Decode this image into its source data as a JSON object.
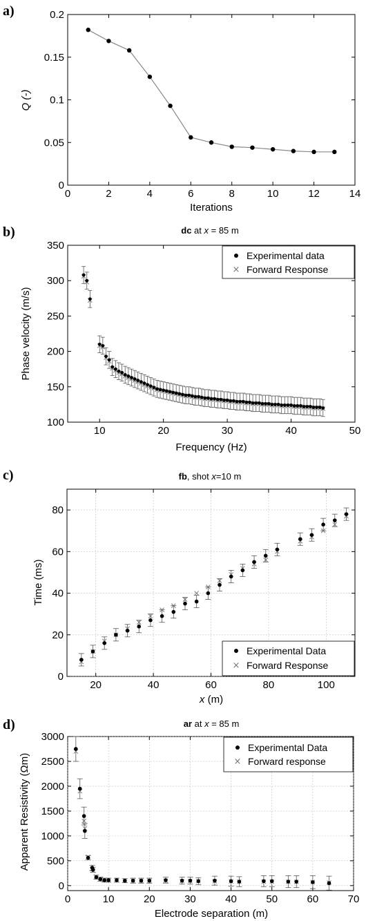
{
  "chart_data": [
    {
      "type": "line",
      "panel": "a)",
      "title": "",
      "xlabel": "Iterations",
      "ylabel": "Q (-)",
      "xlim": [
        0,
        14
      ],
      "ylim": [
        0,
        0.2
      ],
      "xticks": [
        "0",
        "2",
        "4",
        "6",
        "8",
        "10",
        "12",
        "14"
      ],
      "yticks": [
        "0",
        "0.05",
        "0.1",
        "0.15",
        "0.2"
      ],
      "grid": false,
      "series": [
        {
          "x": [
            1,
            2,
            3,
            4,
            5,
            6,
            7,
            8,
            9,
            10,
            11,
            12,
            13
          ],
          "y": [
            0.182,
            0.169,
            0.158,
            0.127,
            0.093,
            0.056,
            0.05,
            0.045,
            0.044,
            0.042,
            0.04,
            0.039,
            0.039
          ]
        }
      ]
    },
    {
      "type": "scatter",
      "panel": "b)",
      "title_bold": "dc",
      "title_mid": " at ",
      "title_ital": "x",
      "title_rest": " = 85 m",
      "xlabel": "Frequency (Hz)",
      "ylabel": "Phase velocity (m/s)",
      "xlim": [
        5,
        50
      ],
      "ylim": [
        100,
        350
      ],
      "xticks": [
        "10",
        "20",
        "30",
        "40",
        "50"
      ],
      "yticks": [
        "100",
        "150",
        "200",
        "250",
        "300",
        "350"
      ],
      "grid": false,
      "legend": [
        "Experimental data",
        "Forward Response"
      ],
      "legend_position": "top-right",
      "series": [
        {
          "name": "Experimental data",
          "x": [
            7.5,
            8,
            8.5,
            10,
            10.5,
            11,
            11.5,
            12,
            12.5,
            13,
            13.5,
            14,
            14.5,
            15,
            15.5,
            16,
            16.5,
            17,
            17.5,
            18,
            18.5,
            19,
            19.5,
            20,
            20.5,
            21,
            21.5,
            22,
            22.5,
            23,
            23.5,
            24,
            24.5,
            25,
            25.5,
            26,
            26.5,
            27,
            27.5,
            28,
            28.5,
            29,
            29.5,
            30,
            30.5,
            31,
            31.5,
            32,
            32.5,
            33,
            33.5,
            34,
            34.5,
            35,
            35.5,
            36,
            36.5,
            37,
            37.5,
            38,
            38.5,
            39,
            39.5,
            40,
            40.5,
            41,
            41.5,
            42,
            42.5,
            43,
            43.5,
            44,
            44.5,
            45
          ],
          "y": [
            308,
            300,
            274,
            210,
            208,
            193,
            188,
            178,
            175,
            172,
            170,
            167,
            165,
            163,
            161,
            159,
            157,
            155,
            153,
            151,
            149,
            147,
            146,
            145,
            144,
            143,
            142,
            141,
            140,
            139,
            138,
            138,
            137,
            136,
            136,
            135,
            134,
            134,
            133,
            133,
            132,
            132,
            131,
            131,
            130,
            130,
            129,
            129,
            129,
            128,
            128,
            127,
            127,
            127,
            126,
            126,
            126,
            125,
            125,
            125,
            124,
            124,
            124,
            124,
            123,
            123,
            123,
            122,
            122,
            122,
            121,
            121,
            121,
            120
          ],
          "error": 12
        },
        {
          "name": "Forward Response",
          "x": [
            7.5,
            8,
            8.5,
            10,
            10.5,
            11,
            11.5,
            12,
            12.5,
            13,
            13.5,
            14,
            14.5,
            15,
            15.5,
            16,
            16.5,
            17,
            17.5,
            18,
            18.5,
            19,
            19.5,
            20,
            20.5,
            21,
            21.5,
            22,
            22.5,
            23,
            23.5,
            24,
            24.5,
            25,
            25.5,
            26,
            26.5,
            27,
            27.5,
            28,
            28.5,
            29,
            29.5,
            30,
            30.5,
            31,
            31.5,
            32,
            32.5,
            33,
            33.5,
            34,
            34.5,
            35,
            35.5,
            36,
            36.5,
            37,
            37.5,
            38,
            38.5,
            39,
            39.5,
            40,
            40.5,
            41,
            41.5,
            42,
            42.5,
            43,
            43.5,
            44,
            44.5,
            45
          ],
          "y": [
            306,
            298,
            272,
            208,
            206,
            191,
            186,
            176,
            173,
            170,
            168,
            165,
            163,
            161,
            159,
            157,
            155,
            153,
            151,
            149,
            148,
            146,
            145,
            144,
            143,
            142,
            141,
            140,
            139,
            138,
            137,
            137,
            136,
            135,
            135,
            134,
            133,
            133,
            132,
            132,
            131,
            131,
            130,
            130,
            129,
            129,
            128,
            128,
            128,
            127,
            127,
            126,
            126,
            126,
            125,
            125,
            125,
            124,
            124,
            124,
            123,
            123,
            123,
            123,
            122,
            122,
            122,
            121,
            121,
            121,
            120,
            120,
            120,
            119
          ]
        }
      ]
    },
    {
      "type": "scatter",
      "panel": "c)",
      "title_bold": "fb",
      "title_mid": ", shot ",
      "title_ital": "x",
      "title_rest": "=10 m",
      "xlabel_ital": "x",
      "xlabel_rest": " (m)",
      "ylabel": "Time (ms)",
      "xlim": [
        10,
        110
      ],
      "ylim": [
        0,
        90
      ],
      "xticks": [
        "20",
        "40",
        "60",
        "80",
        "100"
      ],
      "yticks": [
        "0",
        "20",
        "40",
        "60",
        "80"
      ],
      "grid": true,
      "legend": [
        "Experimental Data",
        "Forward Response"
      ],
      "legend_position": "bottom-right",
      "series": [
        {
          "name": "Experimental Data",
          "x": [
            15,
            19,
            23,
            27,
            31,
            35,
            39,
            43,
            47,
            51,
            55,
            59,
            63,
            67,
            71,
            75,
            79,
            83,
            91,
            95,
            99,
            103,
            107
          ],
          "y": [
            8,
            12,
            16,
            20,
            22,
            24,
            27,
            29,
            31,
            35,
            36,
            40,
            44,
            48,
            51,
            55,
            58,
            61,
            66,
            68,
            73,
            75,
            78
          ],
          "error": 3
        },
        {
          "name": "Forward Response",
          "x": [
            15,
            19,
            23,
            27,
            31,
            35,
            39,
            43,
            47,
            51,
            55,
            59,
            63,
            67,
            71,
            75,
            79,
            83,
            91,
            95,
            99,
            103,
            107
          ],
          "y": [
            7,
            12,
            17,
            20,
            23,
            26,
            29,
            32,
            34,
            37,
            40,
            43,
            46,
            49,
            52,
            54,
            56,
            60,
            65,
            67,
            70,
            73,
            77
          ]
        }
      ]
    },
    {
      "type": "scatter",
      "panel": "d)",
      "title_bold": "ar",
      "title_mid": " at ",
      "title_ital": "x",
      "title_rest": " = 85 m",
      "xlabel": "Electrode separation (m)",
      "ylabel": "Apparent Resistivity (Ωm)",
      "xlim": [
        0,
        70
      ],
      "ylim": [
        -100,
        3000
      ],
      "xticks": [
        "0",
        "10",
        "20",
        "30",
        "40",
        "50",
        "60",
        "70"
      ],
      "yticks": [
        "0",
        "500",
        "1000",
        "1500",
        "2000",
        "2500",
        "3000"
      ],
      "grid": true,
      "legend": [
        "Experimental Data",
        "Forward response"
      ],
      "legend_position": "top-right",
      "series": [
        {
          "name": "Experimental Data",
          "x": [
            2,
            3,
            4,
            4.2,
            5,
            6,
            6.2,
            7,
            8,
            9,
            10,
            12,
            14,
            16,
            18,
            20,
            24,
            28,
            30,
            32,
            36,
            40,
            42,
            48,
            50,
            54,
            56,
            60,
            64
          ],
          "y": [
            2750,
            1950,
            1400,
            1100,
            560,
            360,
            320,
            170,
            130,
            110,
            110,
            110,
            100,
            100,
            100,
            100,
            110,
            100,
            100,
            90,
            100,
            90,
            80,
            90,
            90,
            80,
            80,
            70,
            50
          ],
          "error": [
            250,
            200,
            180,
            150,
            40,
            50,
            50,
            40,
            40,
            40,
            40,
            40,
            40,
            50,
            50,
            50,
            60,
            70,
            70,
            70,
            90,
            100,
            100,
            110,
            110,
            120,
            120,
            130,
            140
          ]
        },
        {
          "name": "Forward response",
          "x": [
            2,
            3,
            4,
            4.2,
            5,
            6,
            6.2,
            7,
            8,
            9,
            10,
            12,
            14,
            16,
            18,
            20,
            24,
            28,
            30,
            32,
            36,
            40,
            42,
            48,
            50,
            54,
            56,
            60,
            64
          ],
          "y": [
            2700,
            1900,
            1300,
            1150,
            580,
            330,
            300,
            180,
            140,
            120,
            110,
            110,
            105,
            100,
            100,
            100,
            100,
            95,
            95,
            90,
            90,
            85,
            80,
            80,
            80,
            75,
            75,
            70,
            60
          ]
        }
      ]
    }
  ]
}
